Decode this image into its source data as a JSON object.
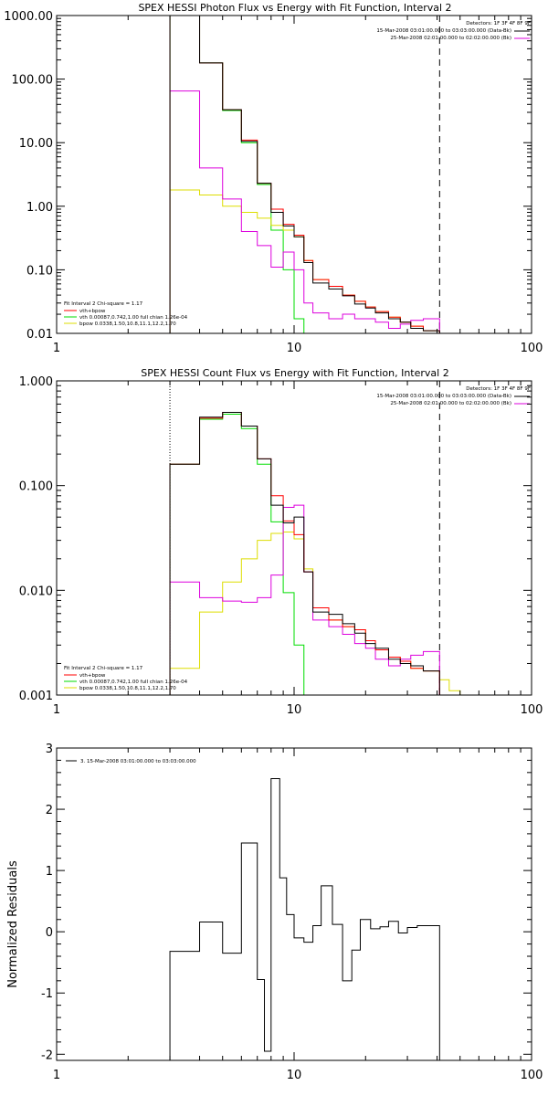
{
  "colors": {
    "background": "#ffffff",
    "axes": "#000000",
    "total": "#000000",
    "model": "#ff0000",
    "vth": "#00dd00",
    "bpow": "#dddd00",
    "background_spectrum": "#dd00dd"
  },
  "chart_data": [
    {
      "type": "line",
      "title": "SPEX HESSI Photon Flux vs Energy with Fit Function, Interval 2",
      "xscale": "log",
      "yscale": "log",
      "xlim": [
        1,
        100
      ],
      "ylim": [
        0.01,
        1000
      ],
      "xticks": [
        1,
        10,
        100
      ],
      "xtick_labels": [
        "1",
        "10",
        "100"
      ],
      "yticks": [
        0.01,
        0.1,
        1,
        10,
        100,
        1000
      ],
      "ytick_labels": [
        "0.01",
        "0.10",
        "1.00",
        "10.00",
        "100.00",
        "1000.00"
      ],
      "vlines": [
        {
          "x": 3,
          "style": "solid",
          "color": "#dddd00"
        },
        {
          "x": 41,
          "style": "dashed",
          "color": "#000000"
        }
      ],
      "header": {
        "detectors": "Detectors: 1F 3F 4F 8F 9F",
        "interval": "15-Mar-2008 03:01:00.000 to 03:03:00.000 (Data-Bk)",
        "background": "25-Mar-2008 02:01:00.000 to 02:02:00.000 (Bk)"
      },
      "legend": {
        "title": "Fit Interval 2   Chi-square = 1.17",
        "entries": [
          "vth+bpow",
          "vth 0.00087,0.742,1.00   full chian 1.26e-04",
          "bpow 0.0338,1.50,10.8,11.1,12.2,1.70"
        ]
      },
      "edges": [
        3,
        4,
        5,
        6,
        7,
        8,
        9,
        10,
        11,
        12,
        14,
        16,
        18,
        20,
        22,
        25,
        28,
        31,
        35,
        41
      ],
      "series": [
        {
          "key": "vth",
          "values": [
            1000,
            180,
            32,
            10,
            2.2,
            0.42,
            0.1,
            0.017,
            null,
            null,
            null,
            null,
            null,
            null,
            null,
            null,
            null,
            null,
            null
          ]
        },
        {
          "key": "bpow",
          "values": [
            1.8,
            1.5,
            1.0,
            0.8,
            0.65,
            0.5,
            0.42,
            0.33,
            0.14,
            0.07,
            0.055,
            0.04,
            0.032,
            0.026,
            0.022,
            0.018,
            0.015,
            0.013,
            0.011
          ]
        },
        {
          "key": "background_spectrum",
          "values": [
            65,
            4,
            1.3,
            0.4,
            0.24,
            0.11,
            0.19,
            0.1,
            0.03,
            0.021,
            0.017,
            0.02,
            0.017,
            0.017,
            0.015,
            0.012,
            0.014,
            0.016,
            0.017
          ]
        },
        {
          "key": "model",
          "values": [
            1000,
            180,
            33,
            11,
            2.3,
            0.9,
            0.52,
            0.35,
            0.14,
            0.07,
            0.055,
            0.04,
            0.032,
            0.026,
            0.022,
            0.018,
            0.015,
            0.013,
            0.011
          ]
        },
        {
          "key": "total",
          "values": [
            1000,
            180,
            33,
            10.5,
            2.3,
            0.8,
            0.49,
            0.33,
            0.13,
            0.062,
            0.05,
            0.039,
            0.029,
            0.025,
            0.021,
            0.017,
            0.015,
            0.012,
            0.011
          ]
        }
      ]
    },
    {
      "type": "line",
      "title": "SPEX HESSI Count Flux vs Energy with Fit Function, Interval 2",
      "xscale": "log",
      "yscale": "log",
      "xlim": [
        1,
        100
      ],
      "ylim": [
        0.001,
        1
      ],
      "xticks": [
        1,
        10,
        100
      ],
      "xtick_labels": [
        "1",
        "10",
        "100"
      ],
      "yticks": [
        0.001,
        0.01,
        0.1,
        1
      ],
      "ytick_labels": [
        "0.001",
        "0.010",
        "0.100",
        "1.000"
      ],
      "vlines": [
        {
          "x": 3,
          "style": "dotted",
          "color": "#000000"
        },
        {
          "x": 41,
          "style": "dashed",
          "color": "#000000"
        }
      ],
      "header": {
        "detectors": "Detectors: 1F 3F 4F 8F 9F",
        "interval": "15-Mar-2008 03:01:00.000 to 03:03:00.000 (Data-Bk)",
        "background": "25-Mar-2008 02:01:00.000 to 02:02:00.000 (Bk)"
      },
      "legend": {
        "title": "Fit Interval 2   Chi-square = 1.17",
        "entries": [
          "vth+bpow",
          "vth 0.00087,0.742,1.00   full chian 1.26e-04",
          "bpow 0.0338,1.50,10.8,11.1,12.2,1.70"
        ]
      },
      "edges": [
        3,
        4,
        5,
        6,
        7,
        8,
        9,
        10,
        11,
        12,
        14,
        16,
        18,
        20,
        22,
        25,
        28,
        31,
        35,
        41,
        45,
        50
      ],
      "series": [
        {
          "key": "vth",
          "values": [
            0.16,
            0.43,
            0.48,
            0.35,
            0.16,
            0.045,
            0.0095,
            0.003,
            null,
            null,
            null,
            null,
            null,
            null,
            null,
            null,
            null,
            null,
            null,
            null,
            null
          ]
        },
        {
          "key": "bpow",
          "values": [
            0.0018,
            0.0062,
            0.012,
            0.02,
            0.03,
            0.035,
            0.036,
            0.031,
            0.016,
            0.0068,
            0.0052,
            0.0045,
            0.0042,
            0.0033,
            0.0027,
            0.0023,
            0.0021,
            0.0018,
            0.0017,
            0.0014,
            0.0011
          ]
        },
        {
          "key": "background_spectrum",
          "values": [
            0.012,
            0.0085,
            0.0079,
            0.0077,
            0.0085,
            0.014,
            0.062,
            0.065,
            0.015,
            0.0052,
            0.0045,
            0.0038,
            0.0031,
            0.0028,
            0.0022,
            0.0019,
            0.0022,
            0.0024,
            0.0026,
            null,
            null
          ]
        },
        {
          "key": "model",
          "values": [
            0.16,
            0.44,
            0.5,
            0.37,
            0.18,
            0.08,
            0.046,
            0.034,
            0.015,
            0.0068,
            0.0052,
            0.0045,
            0.0042,
            0.0033,
            0.0027,
            0.0023,
            0.0021,
            0.0018,
            0.0017,
            null,
            null
          ]
        },
        {
          "key": "total",
          "values": [
            0.16,
            0.45,
            0.5,
            0.37,
            0.18,
            0.065,
            0.044,
            0.05,
            0.015,
            0.0062,
            0.0059,
            0.0048,
            0.0039,
            0.0031,
            0.0028,
            0.0022,
            0.002,
            0.0019,
            0.0017,
            null,
            null
          ]
        }
      ]
    },
    {
      "type": "line",
      "title": "",
      "ylabel": "Normalized Residuals",
      "xscale": "log",
      "yscale": "linear",
      "xlim": [
        1,
        100
      ],
      "ylim": [
        -2.1,
        3
      ],
      "xticks": [
        1,
        10,
        100
      ],
      "xtick_labels": [
        "1",
        "10",
        "100"
      ],
      "yticks": [
        -2,
        -1,
        0,
        1,
        2,
        3
      ],
      "ytick_labels": [
        "-2",
        "-1",
        "0",
        "1",
        "2",
        "3"
      ],
      "legend": {
        "entries": [
          "3. 15-Mar-2008 03:01:00.000 to 03:03:00.000"
        ]
      },
      "edges": [
        3,
        4,
        5,
        6,
        7,
        7.5,
        8,
        8.7,
        9.3,
        10,
        11,
        12,
        13,
        14.5,
        16,
        17.5,
        19,
        21,
        23,
        25,
        27.5,
        30,
        33,
        37,
        41
      ],
      "series": [
        {
          "key": "total",
          "values": [
            -0.32,
            0.16,
            -0.35,
            1.45,
            -0.78,
            -1.95,
            2.5,
            0.88,
            0.28,
            -0.1,
            -0.17,
            0.1,
            0.75,
            0.12,
            -0.8,
            -0.3,
            0.2,
            0.05,
            0.08,
            0.17,
            -0.02,
            0.07,
            0.1,
            0.1
          ]
        }
      ]
    }
  ]
}
